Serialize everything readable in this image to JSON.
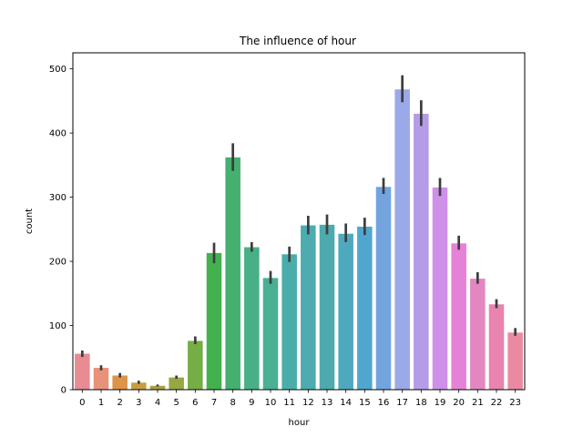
{
  "chart_data": {
    "type": "bar",
    "title": "The influence of hour",
    "xlabel": "hour",
    "ylabel": "count",
    "ylim": [
      0,
      525
    ],
    "yticks": [
      0,
      100,
      200,
      300,
      400,
      500
    ],
    "categories": [
      "0",
      "1",
      "2",
      "3",
      "4",
      "5",
      "6",
      "7",
      "8",
      "9",
      "10",
      "11",
      "12",
      "13",
      "14",
      "15",
      "16",
      "17",
      "18",
      "19",
      "20",
      "21",
      "22",
      "23"
    ],
    "values": [
      56,
      34,
      22,
      11,
      6,
      19,
      76,
      213,
      362,
      222,
      174,
      211,
      256,
      257,
      243,
      254,
      316,
      468,
      430,
      315,
      228,
      173,
      133,
      89
    ],
    "errors_low": [
      51,
      30,
      19,
      9,
      5,
      17,
      71,
      197,
      341,
      215,
      165,
      199,
      242,
      242,
      230,
      241,
      305,
      448,
      411,
      302,
      218,
      165,
      127,
      84
    ],
    "errors_high": [
      61,
      38,
      26,
      14,
      8,
      22,
      83,
      229,
      384,
      230,
      185,
      223,
      271,
      273,
      259,
      268,
      330,
      490,
      451,
      330,
      240,
      183,
      141,
      96
    ],
    "colors": [
      "#e98b93",
      "#e8927a",
      "#dd9449",
      "#c89e42",
      "#ae9f42",
      "#97a843",
      "#75ae45",
      "#43b24e",
      "#45b06f",
      "#48b084",
      "#4aaf93",
      "#4badaa",
      "#4cacb0",
      "#4daaaf",
      "#4fa9be",
      "#50a6ce",
      "#73a4e0",
      "#9ba9e8",
      "#b59ce8",
      "#cf90e8",
      "#e681d8",
      "#e387c0",
      "#e884ad",
      "#ea8aa2"
    ],
    "grid": false,
    "legend": "none"
  }
}
